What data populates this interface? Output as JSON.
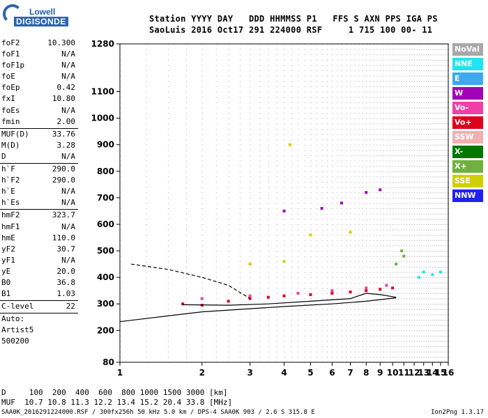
{
  "logo": {
    "line1": "Lowell",
    "line2": "DIGISONDE"
  },
  "header": {
    "row1": "Station YYYY DAY   DDD HHMMSS P1   FFS S AXN PPS IGA PS",
    "row2": "SaoLuis 2016 Oct17 291 224000 RSF     1 715 100 00- 11"
  },
  "params": {
    "group1": [
      {
        "label": "foF2",
        "value": "10.300"
      },
      {
        "label": "foF1",
        "value": "N/A"
      },
      {
        "label": "foF1p",
        "value": "N/A"
      },
      {
        "label": "foE",
        "value": "N/A"
      },
      {
        "label": "foEp",
        "value": "0.42"
      },
      {
        "label": "fxI",
        "value": "10.80"
      },
      {
        "label": "foEs",
        "value": "N/A"
      },
      {
        "label": "fmin",
        "value": "2.00"
      }
    ],
    "group2": [
      {
        "label": "MUF(D)",
        "value": "33.76"
      },
      {
        "label": "M(D)",
        "value": "3.28"
      },
      {
        "label": "D",
        "value": "N/A"
      }
    ],
    "group3": [
      {
        "label": "h`F",
        "value": "290.0"
      },
      {
        "label": "h`F2",
        "value": "290.0"
      },
      {
        "label": "h`E",
        "value": "N/A"
      },
      {
        "label": "h`Es",
        "value": "N/A"
      }
    ],
    "group4": [
      {
        "label": "hmF2",
        "value": "323.7"
      },
      {
        "label": "hmF1",
        "value": "N/A"
      },
      {
        "label": "hmE",
        "value": "110.0"
      },
      {
        "label": "yF2",
        "value": "30.7"
      },
      {
        "label": "yF1",
        "value": "N/A"
      },
      {
        "label": "yE",
        "value": "20.0"
      },
      {
        "label": "B0",
        "value": "36.8"
      },
      {
        "label": "B1",
        "value": "1.03"
      }
    ],
    "group5": [
      {
        "label": "C-level",
        "value": "22"
      }
    ],
    "auto": [
      "Auto:",
      "Artist5",
      "500200"
    ]
  },
  "legend": [
    {
      "label": "NoVal",
      "color": "#a8a8a8"
    },
    {
      "label": "NNE",
      "color": "#22e4f0"
    },
    {
      "label": "E",
      "color": "#3ea9f0"
    },
    {
      "label": "W",
      "color": "#a000b8"
    },
    {
      "label": "Vo-",
      "color": "#f040a8"
    },
    {
      "label": "Vo+",
      "color": "#e0001c"
    },
    {
      "label": "SSW",
      "color": "#f0b0b0"
    },
    {
      "label": "X-",
      "color": "#007800"
    },
    {
      "label": "X+",
      "color": "#70b040"
    },
    {
      "label": "SSE",
      "color": "#d0d000"
    },
    {
      "label": "NNW",
      "color": "#2020f0"
    }
  ],
  "bottom": {
    "distance_row": "D     100  200  400  600  800 1000 1500 3000 [km]",
    "muf_row": "MUF  10.7 10.8 11.3 12.2 13.4 15.2 20.4 33.8 [MHz]",
    "file_info": "SAA0K_2016291224000.RSF / 300fx256h 50 kHz 5.0 km / DPS-4 SAA0K 903 / 2.6 S 315.8 E",
    "version": "Ion2Png 1.3.17"
  },
  "chart_data": {
    "type": "scatter",
    "title": "",
    "xlabel": "",
    "ylabel": "",
    "x_scale": "log",
    "xlim": [
      1,
      16
    ],
    "x_ticks": [
      1,
      2,
      3,
      4,
      5,
      6,
      7,
      8,
      9,
      10,
      11,
      12,
      13,
      14,
      15,
      16
    ],
    "ylim": [
      80,
      1280
    ],
    "y_ticks": [
      80,
      200,
      300,
      400,
      500,
      600,
      700,
      800,
      900,
      1000,
      1100,
      1280
    ],
    "grid": true,
    "legend_position": "right",
    "series": [
      {
        "name": "Vo+",
        "color": "#e0001c",
        "points": [
          [
            1.7,
            300
          ],
          [
            2.0,
            295
          ],
          [
            2.5,
            310
          ],
          [
            3.0,
            320
          ],
          [
            3.5,
            325
          ],
          [
            4.0,
            330
          ],
          [
            5.0,
            335
          ],
          [
            6.0,
            340
          ],
          [
            7.0,
            345
          ],
          [
            8.0,
            350
          ],
          [
            9.0,
            355
          ],
          [
            10.0,
            360
          ]
        ]
      },
      {
        "name": "Vo-",
        "color": "#f040a8",
        "points": [
          [
            2.0,
            320
          ],
          [
            3.0,
            330
          ],
          [
            4.5,
            340
          ],
          [
            6.0,
            350
          ],
          [
            8.0,
            360
          ],
          [
            9.5,
            370
          ]
        ]
      },
      {
        "name": "W",
        "color": "#a000b8",
        "points": [
          [
            4.0,
            650
          ],
          [
            5.5,
            660
          ],
          [
            6.5,
            680
          ],
          [
            8.0,
            720
          ],
          [
            9.0,
            730
          ]
        ]
      },
      {
        "name": "SSE",
        "color": "#d0d000",
        "points": [
          [
            3.0,
            450
          ],
          [
            4.0,
            460
          ],
          [
            5.0,
            560
          ],
          [
            7.0,
            570
          ],
          [
            4.2,
            900
          ]
        ]
      },
      {
        "name": "NNE",
        "color": "#22e4f0",
        "points": [
          [
            12.5,
            400
          ],
          [
            13.0,
            420
          ],
          [
            14.0,
            410
          ],
          [
            15.0,
            420
          ]
        ]
      },
      {
        "name": "X+",
        "color": "#70b040",
        "points": [
          [
            10.3,
            450
          ],
          [
            10.8,
            500
          ],
          [
            11.0,
            480
          ]
        ]
      }
    ],
    "profile_line": {
      "name": "",
      "color": "#000000",
      "points": [
        [
          1.7,
          297
        ],
        [
          2.5,
          295
        ],
        [
          3.5,
          300
        ],
        [
          5.0,
          310
        ],
        [
          7.0,
          320
        ],
        [
          8.0,
          340
        ],
        [
          9.0,
          335
        ],
        [
          10.3,
          325
        ]
      ]
    },
    "dashed_line": {
      "name": "",
      "color": "#000000",
      "points": [
        [
          1.1,
          450
        ],
        [
          1.5,
          430
        ],
        [
          2.0,
          400
        ],
        [
          2.5,
          370
        ],
        [
          3.0,
          320
        ]
      ]
    },
    "lower_curve": {
      "name": "",
      "color": "#000000",
      "points": [
        [
          1.0,
          233
        ],
        [
          2.0,
          270
        ],
        [
          4.0,
          290
        ],
        [
          6.0,
          300
        ],
        [
          8.0,
          310
        ],
        [
          10.3,
          323
        ]
      ]
    }
  }
}
